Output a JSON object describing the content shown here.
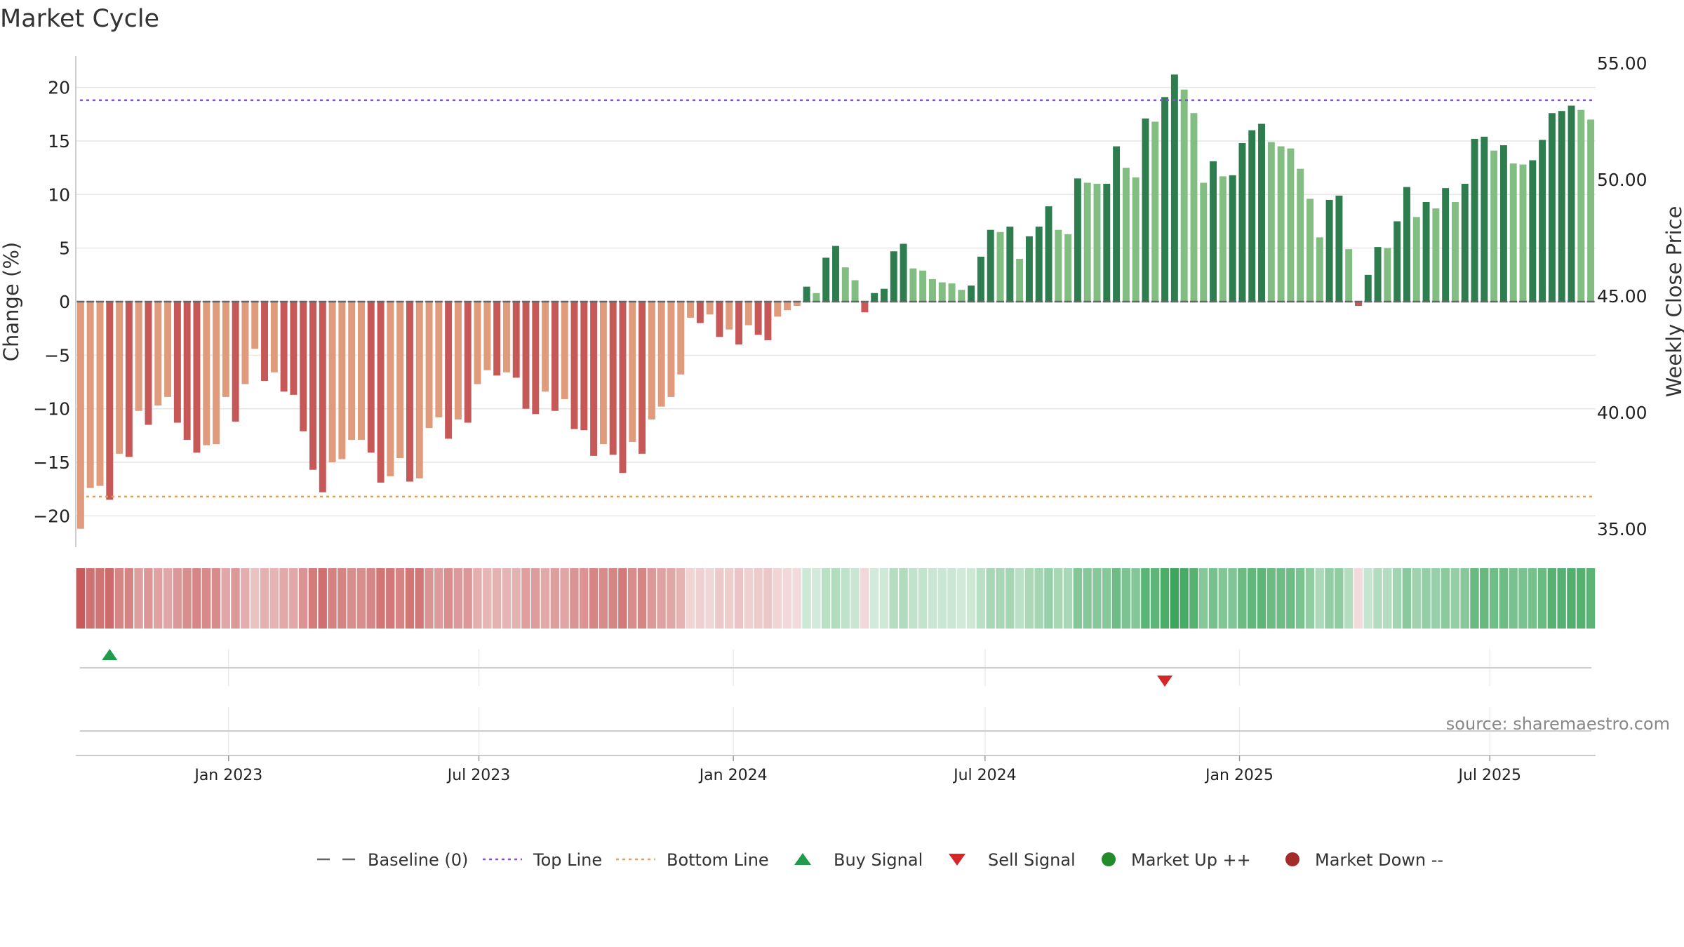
{
  "chart_data": {
    "type": "bar",
    "title": "Market Cycle",
    "ylabel": "Change (%)",
    "y2label": "Weekly Close Price",
    "ylim": [
      -23,
      23.5
    ],
    "yticks": [
      20,
      15,
      10,
      5,
      0,
      -5,
      -10,
      -15,
      -20
    ],
    "ytick_labels": [
      "20",
      "15",
      "10",
      "5",
      "0",
      "−5",
      "−10",
      "−15",
      "−20"
    ],
    "y2ticks": [
      "55.00",
      "50.00",
      "45.00",
      "40.00",
      "35.00"
    ],
    "top_line": 18.8,
    "bottom_line": -18.2,
    "baseline": 0,
    "x_start": "2022-09-16",
    "x_step_weeks": 1,
    "xticks": [
      {
        "date": "2023-01-01",
        "label": "Jan 2023"
      },
      {
        "date": "2023-07-01",
        "label": "Jul 2023"
      },
      {
        "date": "2024-01-01",
        "label": "Jan 2024"
      },
      {
        "date": "2024-07-01",
        "label": "Jul 2024"
      },
      {
        "date": "2025-01-01",
        "label": "Jan 2025"
      },
      {
        "date": "2025-07-01",
        "label": "Jul 2025"
      }
    ],
    "values": [
      -21.2,
      -17.4,
      -17.2,
      -18.5,
      -14.2,
      -14.5,
      -10.2,
      -11.5,
      -9.7,
      -8.9,
      -11.3,
      -12.9,
      -14.1,
      -13.4,
      -13.3,
      -8.9,
      -11.2,
      -7.7,
      -4.4,
      -7.4,
      -6.6,
      -8.4,
      -8.7,
      -12.1,
      -15.7,
      -17.8,
      -15.0,
      -14.7,
      -12.9,
      -12.9,
      -14.1,
      -16.9,
      -16.3,
      -14.6,
      -16.8,
      -16.5,
      -11.8,
      -10.8,
      -12.8,
      -11.0,
      -11.3,
      -7.7,
      -6.4,
      -6.9,
      -6.6,
      -7.1,
      -10.0,
      -10.5,
      -8.4,
      -10.2,
      -9.1,
      -11.9,
      -12.0,
      -14.4,
      -13.3,
      -14.3,
      -16.0,
      -13.1,
      -14.2,
      -11.0,
      -9.8,
      -8.9,
      -6.8,
      -1.5,
      -2.0,
      -1.2,
      -3.3,
      -2.6,
      -4.0,
      -2.2,
      -3.1,
      -3.6,
      -1.4,
      -0.8,
      -0.4,
      1.4,
      0.8,
      4.1,
      5.2,
      3.2,
      2.0,
      -1.0,
      0.8,
      1.2,
      4.7,
      5.4,
      3.1,
      2.9,
      2.1,
      1.8,
      1.7,
      1.1,
      1.5,
      4.2,
      6.7,
      6.5,
      7.0,
      4.0,
      6.1,
      7.0,
      8.9,
      6.7,
      6.3,
      11.5,
      11.1,
      11.0,
      11.0,
      14.5,
      12.5,
      11.6,
      17.1,
      16.8,
      19.1,
      21.2,
      19.8,
      17.6,
      11.1,
      13.1,
      11.7,
      11.8,
      14.8,
      16.0,
      16.6,
      14.9,
      14.5,
      14.3,
      12.4,
      9.6,
      6.0,
      9.5,
      9.9,
      4.9,
      -0.4,
      2.5,
      5.1,
      5.0,
      7.5,
      10.7,
      7.9,
      9.3,
      8.7,
      10.6,
      9.3,
      11.0,
      15.2,
      15.4,
      14.1,
      14.6,
      12.9,
      12.8,
      13.2,
      15.1,
      17.6,
      17.8,
      18.3,
      17.9,
      17.0
    ],
    "colors": {
      "neg_dark": "#c75858",
      "neg_light": "#e09a7c",
      "pos_dark": "#2e7d4f",
      "pos_light": "#82bd82",
      "top_line": "#8a4fd6",
      "bottom_line": "#e0a060",
      "buy": "#1e9c4b",
      "sell": "#d62728",
      "market_up": "#228b2a",
      "market_down": "#a52a2a"
    },
    "buy_signals": [
      3
    ],
    "sell_signals": [
      112
    ],
    "legend": {
      "position": "bottom",
      "items": [
        {
          "label": "Baseline (0)",
          "kind": "dash"
        },
        {
          "label": "Top Line",
          "kind": "dot-purple"
        },
        {
          "label": "Bottom Line",
          "kind": "dot-orange"
        },
        {
          "label": "Buy Signal",
          "kind": "tri-up"
        },
        {
          "label": "Sell Signal",
          "kind": "tri-down"
        },
        {
          "label": "Market Up ++",
          "kind": "circle-green"
        },
        {
          "label": "Market Down --",
          "kind": "circle-red"
        }
      ]
    }
  },
  "source": "source: sharemaestro.com"
}
